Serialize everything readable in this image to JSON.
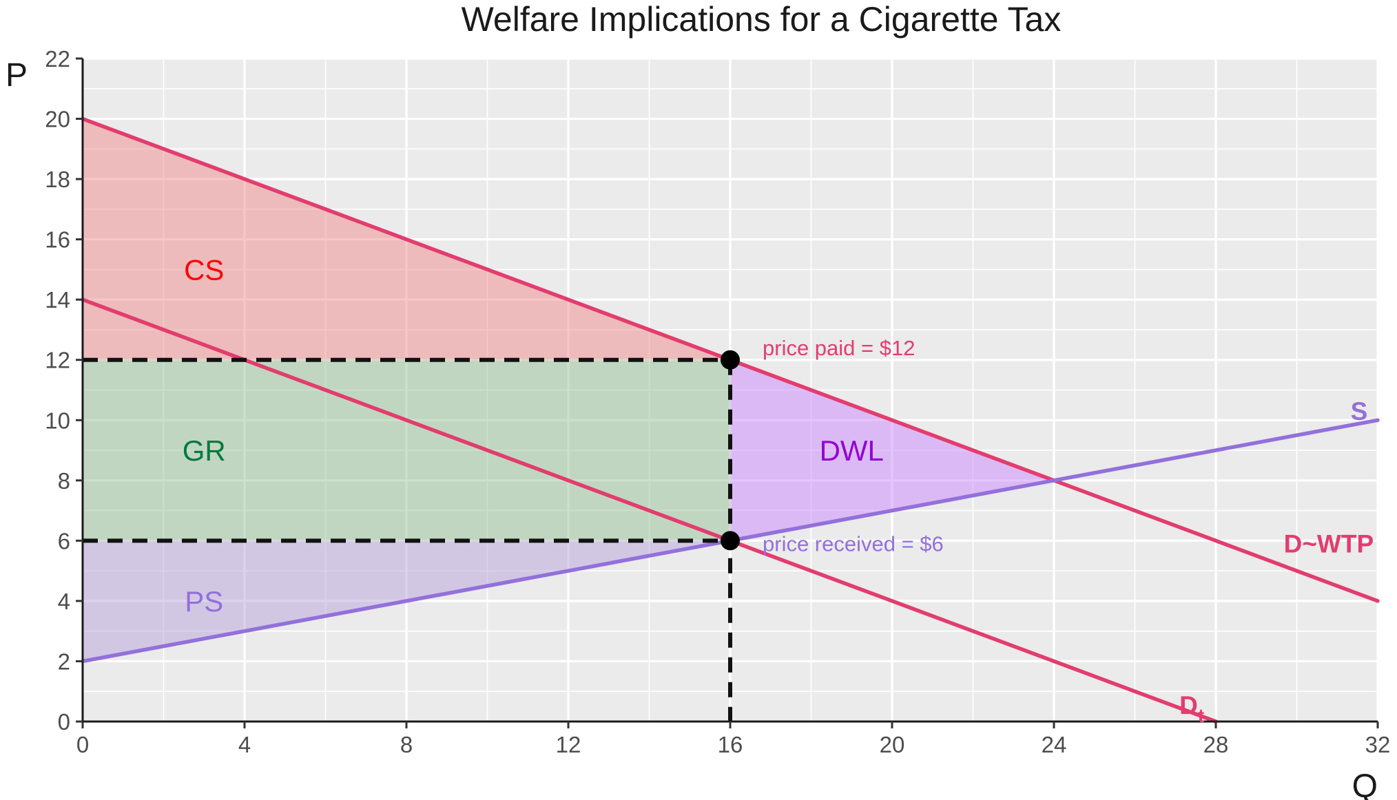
{
  "chart_data": {
    "type": "line",
    "title": "Welfare Implications for a Cigarette Tax",
    "xlabel": "Q",
    "ylabel": "P",
    "xlim": [
      0,
      32
    ],
    "ylim": [
      0,
      22
    ],
    "x_ticks": [
      0,
      4,
      8,
      12,
      16,
      20,
      24,
      28,
      32
    ],
    "y_ticks": [
      0,
      2,
      4,
      6,
      8,
      10,
      12,
      14,
      16,
      18,
      20,
      22
    ],
    "grid": true,
    "legend": "none",
    "series": [
      {
        "name": "D~WTP",
        "label": "D~WTP",
        "color": "#e23d6e",
        "x": [
          0,
          32
        ],
        "values": [
          20,
          4
        ]
      },
      {
        "name": "Dt",
        "label_main": "D",
        "label_sub": "t",
        "color": "#e23d6e",
        "x": [
          0,
          28
        ],
        "values": [
          14,
          0
        ]
      },
      {
        "name": "S",
        "label": "S",
        "color": "#9370db",
        "x": [
          0,
          32
        ],
        "values": [
          2,
          10
        ]
      }
    ],
    "regions": [
      {
        "label": "CS",
        "color": "#ff0000",
        "fill": "#f08080",
        "points": [
          [
            0,
            20
          ],
          [
            16,
            12
          ],
          [
            0,
            12
          ]
        ]
      },
      {
        "label": "GR",
        "color": "#007a3d",
        "fill": "#8fbc8f",
        "points": [
          [
            0,
            12
          ],
          [
            16,
            12
          ],
          [
            16,
            6
          ],
          [
            0,
            6
          ]
        ]
      },
      {
        "label": "PS",
        "color": "#9370db",
        "fill": "#b19cd9",
        "points": [
          [
            0,
            6
          ],
          [
            16,
            6
          ],
          [
            0,
            2
          ]
        ]
      },
      {
        "label": "DWL",
        "color": "#9400d3",
        "fill": "#c77dff",
        "points": [
          [
            16,
            12
          ],
          [
            24,
            8
          ],
          [
            16,
            6
          ]
        ]
      }
    ],
    "points": [
      {
        "x": 16,
        "y": 12
      },
      {
        "x": 16,
        "y": 6
      }
    ],
    "dashed_lines": [
      {
        "points": [
          [
            0,
            12
          ],
          [
            16,
            12
          ]
        ]
      },
      {
        "points": [
          [
            0,
            6
          ],
          [
            16,
            6
          ]
        ]
      },
      {
        "points": [
          [
            16,
            12
          ],
          [
            16,
            0
          ]
        ]
      }
    ],
    "annotations": [
      {
        "text": "price paid = $12",
        "color": "#e23d6e",
        "x": 16.8,
        "y": 12.4
      },
      {
        "text": "price received = $6",
        "color": "#9370db",
        "x": 16.8,
        "y": 5.9
      }
    ]
  }
}
